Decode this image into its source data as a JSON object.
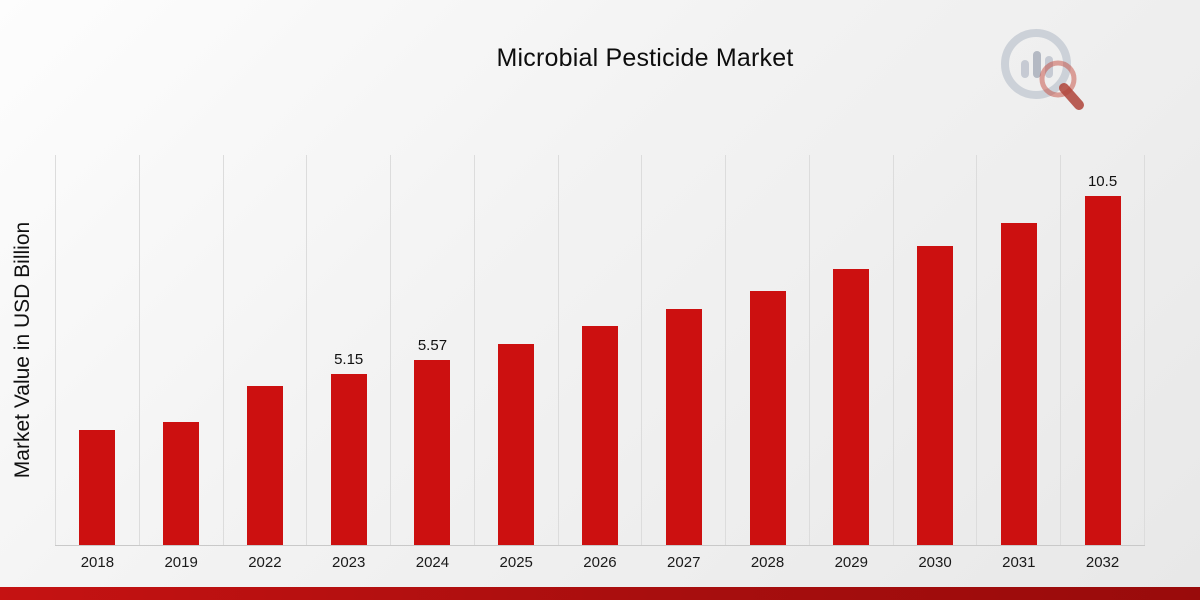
{
  "chart_data": {
    "type": "bar",
    "title": "Microbial Pesticide Market",
    "ylabel": "Market Value in USD Billion",
    "xlabel": "",
    "categories": [
      "2018",
      "2019",
      "2022",
      "2023",
      "2024",
      "2025",
      "2026",
      "2027",
      "2028",
      "2029",
      "2030",
      "2031",
      "2032"
    ],
    "values": [
      3.45,
      3.7,
      4.8,
      5.15,
      5.57,
      6.05,
      6.6,
      7.1,
      7.65,
      8.3,
      9.0,
      9.7,
      10.5
    ],
    "data_labels": {
      "2023": "5.15",
      "2024": "5.57",
      "2032": "10.5"
    },
    "bar_color": "#cc1010",
    "ylim": [
      0,
      11.7
    ],
    "grid": "vertical-only",
    "legend": "none"
  },
  "branding": {
    "logo_icon": "magnifier-bar-chart-icon",
    "footer_accent_color": "#a80e0e"
  }
}
